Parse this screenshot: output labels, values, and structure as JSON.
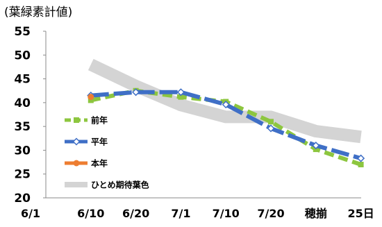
{
  "chart_data": {
    "type": "line",
    "title": "(葉緑素計値)",
    "categories": [
      "6/1",
      "6/10",
      "6/20",
      "7/1",
      "7/10",
      "7/20",
      "穂揃",
      "25日"
    ],
    "ylim": [
      20,
      55
    ],
    "yticks": [
      20,
      25,
      30,
      35,
      40,
      45,
      50,
      55
    ],
    "grid": false,
    "legend_position": "bottom-left",
    "series": [
      {
        "name": "前年",
        "color": "#8dc63f",
        "x": [
          1,
          2,
          3,
          4,
          5,
          6,
          7
        ],
        "values": [
          40.5,
          42.5,
          41.2,
          40.2,
          36.0,
          30.2,
          27.0
        ]
      },
      {
        "name": "平年",
        "color": "#3f6fc6",
        "x": [
          1,
          2,
          3,
          4,
          5,
          6,
          7
        ],
        "values": [
          41.5,
          42.2,
          42.2,
          39.6,
          34.6,
          31.0,
          28.3
        ]
      },
      {
        "name": "本年",
        "color": "#ed7d31",
        "x": [
          1
        ],
        "values": [
          41.2
        ]
      },
      {
        "name": "ひとめ期待葉色",
        "color": "#d4d4d4",
        "x": [
          1,
          2,
          3,
          4,
          5,
          6,
          7
        ],
        "values": [
          48.0,
          43.5,
          39.5,
          37.0,
          37.0,
          34.0,
          32.8
        ]
      }
    ]
  }
}
